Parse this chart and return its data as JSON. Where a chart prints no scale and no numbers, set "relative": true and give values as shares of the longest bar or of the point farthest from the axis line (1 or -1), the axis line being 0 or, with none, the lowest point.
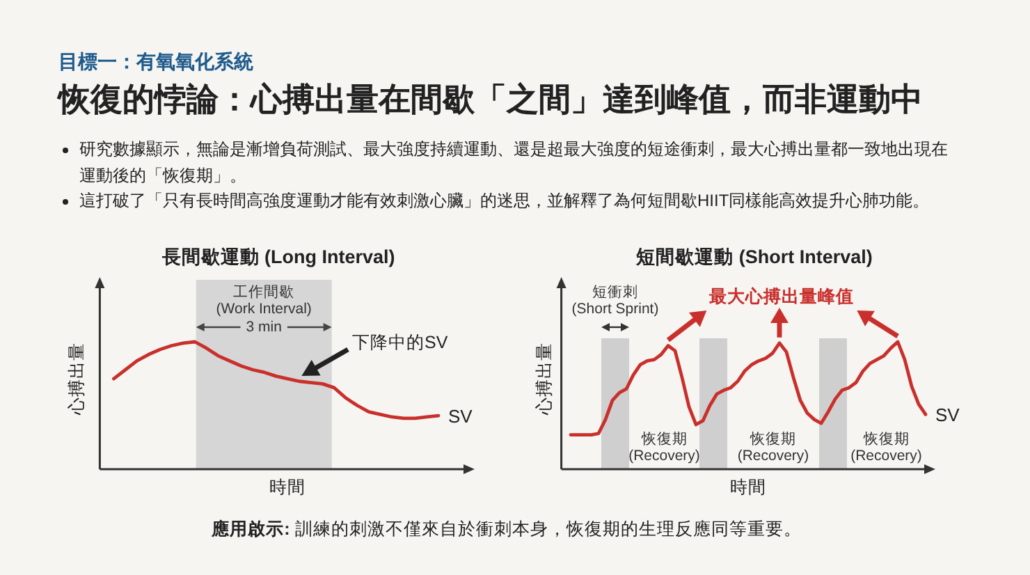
{
  "chart_data": [
    {
      "type": "other",
      "subtitle": "目標一：有氧氧化系統",
      "title": "恢復的悖論：心搏出量在間歇「之間」達到峰值，而非運動中",
      "annotations": [
        "研究數據顯示，無論是漸增負荷測試、最大強度持續運動、還是超最大強度的短途衝刺，最大心搏出量都一致地出現在運動後的「恢復期」。",
        "這打破了「只有長時間高強度運動才能有效刺激心臟」的迷思，並解釋了為何短間歇HIIT同樣能高效提升心肺功能。"
      ]
    },
    {
      "type": "line",
      "title": "長間歇運動 (Long Interval)",
      "xlabel": "時間",
      "ylabel": "心搏出量",
      "relative": true,
      "categories": [
        null,
        null,
        null,
        null,
        null,
        null,
        null,
        null,
        null,
        null,
        null,
        null,
        null,
        null,
        null,
        null,
        null,
        null,
        null,
        null,
        null,
        null,
        null,
        null,
        null,
        null,
        null,
        null,
        null
      ],
      "series": [
        {
          "name": "SV",
          "color": "#c9302c",
          "values": [
            0.71,
            0.78,
            0.85,
            0.9,
            0.94,
            0.97,
            0.99,
            1.0,
            0.95,
            0.89,
            0.85,
            0.81,
            0.78,
            0.76,
            0.73,
            0.71,
            0.69,
            0.68,
            0.67,
            0.64,
            0.56,
            0.5,
            0.45,
            0.43,
            0.41,
            0.4,
            0.4,
            0.41,
            0.42
          ]
        }
      ],
      "annotations": [
        "工作間歇\n(Work Interval)",
        "3 min",
        "下降中的SV"
      ]
    },
    {
      "type": "line",
      "title": "短間歇運動 (Short Interval)",
      "xlabel": "時間",
      "ylabel": "心搏出量",
      "relative": true,
      "categories": [
        null,
        null,
        null,
        null,
        null,
        null,
        null,
        null,
        null,
        null,
        null,
        null,
        null,
        null,
        null,
        null,
        null,
        null,
        null,
        null,
        null,
        null,
        null,
        null,
        null,
        null,
        null,
        null,
        null,
        null,
        null,
        null,
        null,
        null,
        null,
        null,
        null,
        null,
        null,
        null,
        null,
        null,
        null,
        null,
        null,
        null,
        null,
        null,
        null,
        null,
        null,
        null
      ],
      "series": [
        {
          "name": "SV",
          "color": "#c9302c",
          "values": [
            0.27,
            0.27,
            0.27,
            0.27,
            0.28,
            0.39,
            0.54,
            0.6,
            0.63,
            0.74,
            0.82,
            0.85,
            0.86,
            0.9,
            0.97,
            0.93,
            0.72,
            0.49,
            0.35,
            0.38,
            0.5,
            0.59,
            0.62,
            0.64,
            0.69,
            0.77,
            0.82,
            0.85,
            0.87,
            0.91,
            0.99,
            0.92,
            0.72,
            0.54,
            0.44,
            0.39,
            0.36,
            0.45,
            0.55,
            0.62,
            0.64,
            0.68,
            0.77,
            0.83,
            0.86,
            0.89,
            0.95,
            1.0,
            0.86,
            0.65,
            0.51,
            0.43
          ]
        }
      ],
      "annotations": [
        "短衝刺\n(Short Sprint)",
        "最大心搏出量峰值",
        "恢復期\n(Recovery)",
        "恢復期\n(Recovery)",
        "恢復期\n(Recovery)"
      ]
    },
    {
      "type": "other",
      "annotations": [
        "應用啟示: 訓練的刺激不僅來自於衝刺本身，恢復期的生理反應同等重要。"
      ]
    }
  ]
}
